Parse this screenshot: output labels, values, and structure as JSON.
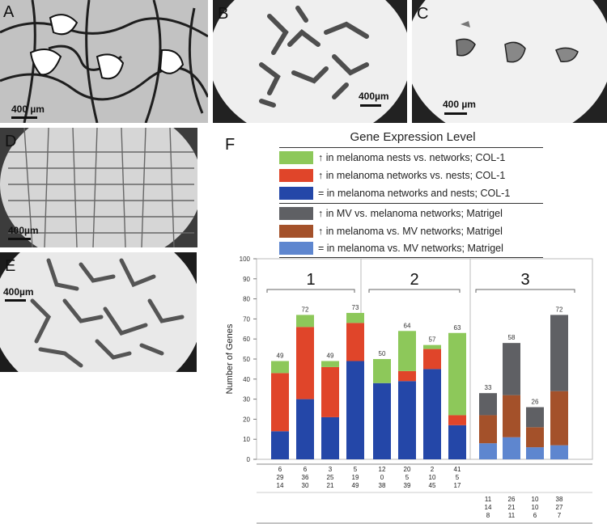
{
  "panels": {
    "a": {
      "label": "A",
      "scale": "400 µm"
    },
    "b": {
      "label": "B",
      "scale": "400µm"
    },
    "c": {
      "label": "C",
      "scale": "400 µm"
    },
    "d": {
      "label": "D",
      "scale": "400µm"
    },
    "e": {
      "label": "E",
      "scale": "400µm"
    },
    "f": {
      "label": "F"
    }
  },
  "legend": {
    "title": "Gene Expression Level",
    "items": [
      {
        "text": "↑ in melanoma nests vs. networks; COL-1",
        "color": "#8dc85a"
      },
      {
        "text": "↑ in melanoma networks vs. nests; COL-1",
        "color": "#e0452a"
      },
      {
        "text": "= in melanoma networks and nests; COL-1",
        "color": "#2447a8"
      },
      {
        "text": "↑ in MV vs. melanoma networks; Matrigel",
        "color": "#5f6064"
      },
      {
        "text": "↑ in melanoma vs. MV networks; Matrigel",
        "color": "#a4512a"
      },
      {
        "text": "= in melanoma vs. MV networks; Matrigel",
        "color": "#5e86cf"
      }
    ]
  },
  "chart_data": {
    "type": "bar",
    "ylabel": "Number of Genes",
    "ylim": [
      0,
      100
    ],
    "yticks": [
      0,
      10,
      20,
      30,
      40,
      50,
      60,
      70,
      80,
      90,
      100
    ],
    "groups": [
      {
        "label": "1",
        "bars": [
          0,
          1,
          2,
          3
        ]
      },
      {
        "label": "2",
        "bars": [
          4,
          5,
          6,
          7
        ]
      },
      {
        "label": "3",
        "bars": [
          8,
          9,
          10,
          11
        ]
      }
    ],
    "stacked": true,
    "bars": [
      {
        "total": "49",
        "segments": [
          {
            "series": 2,
            "value": 14
          },
          {
            "series": 1,
            "value": 29
          },
          {
            "series": 0,
            "value": 6
          }
        ]
      },
      {
        "total": "72",
        "segments": [
          {
            "series": 2,
            "value": 30
          },
          {
            "series": 1,
            "value": 36
          },
          {
            "series": 0,
            "value": 6
          }
        ]
      },
      {
        "total": "49",
        "segments": [
          {
            "series": 2,
            "value": 21
          },
          {
            "series": 1,
            "value": 25
          },
          {
            "series": 0,
            "value": 3
          }
        ]
      },
      {
        "total": "73",
        "segments": [
          {
            "series": 2,
            "value": 49
          },
          {
            "series": 1,
            "value": 19
          },
          {
            "series": 0,
            "value": 5
          }
        ]
      },
      {
        "total": "50",
        "segments": [
          {
            "series": 2,
            "value": 38
          },
          {
            "series": 1,
            "value": 0
          },
          {
            "series": 0,
            "value": 12
          }
        ]
      },
      {
        "total": "64",
        "segments": [
          {
            "series": 2,
            "value": 39
          },
          {
            "series": 1,
            "value": 5
          },
          {
            "series": 0,
            "value": 20
          }
        ]
      },
      {
        "total": "57",
        "segments": [
          {
            "series": 2,
            "value": 45
          },
          {
            "series": 1,
            "value": 10
          },
          {
            "series": 0,
            "value": 2
          }
        ]
      },
      {
        "total": "63",
        "segments": [
          {
            "series": 2,
            "value": 17
          },
          {
            "series": 1,
            "value": 5
          },
          {
            "series": 0,
            "value": 41
          }
        ]
      },
      {
        "total": "33",
        "segments": [
          {
            "series": 5,
            "value": 8
          },
          {
            "series": 4,
            "value": 14
          },
          {
            "series": 3,
            "value": 11
          }
        ]
      },
      {
        "total": "58",
        "segments": [
          {
            "series": 5,
            "value": 11
          },
          {
            "series": 4,
            "value": 21
          },
          {
            "series": 3,
            "value": 26
          }
        ]
      },
      {
        "total": "26",
        "segments": [
          {
            "series": 5,
            "value": 6
          },
          {
            "series": 4,
            "value": 10
          },
          {
            "series": 3,
            "value": 10
          }
        ]
      },
      {
        "total": "72",
        "segments": [
          {
            "series": 5,
            "value": 7
          },
          {
            "series": 4,
            "value": 27
          },
          {
            "series": 3,
            "value": 38
          }
        ]
      }
    ],
    "table": {
      "col1": [
        [
          "6",
          "29",
          "14"
        ],
        [
          "6",
          "36",
          "30"
        ],
        [
          "3",
          "25",
          "21"
        ],
        [
          "5",
          "19",
          "49"
        ],
        [
          "12",
          "0",
          "38"
        ],
        [
          "20",
          "5",
          "39"
        ],
        [
          "2",
          "10",
          "45"
        ],
        [
          "41",
          "5",
          "17"
        ]
      ],
      "col2": [
        [
          "11",
          "14",
          "8"
        ],
        [
          "26",
          "21",
          "11"
        ],
        [
          "10",
          "10",
          "6"
        ],
        [
          "38",
          "27",
          "7"
        ]
      ]
    }
  }
}
